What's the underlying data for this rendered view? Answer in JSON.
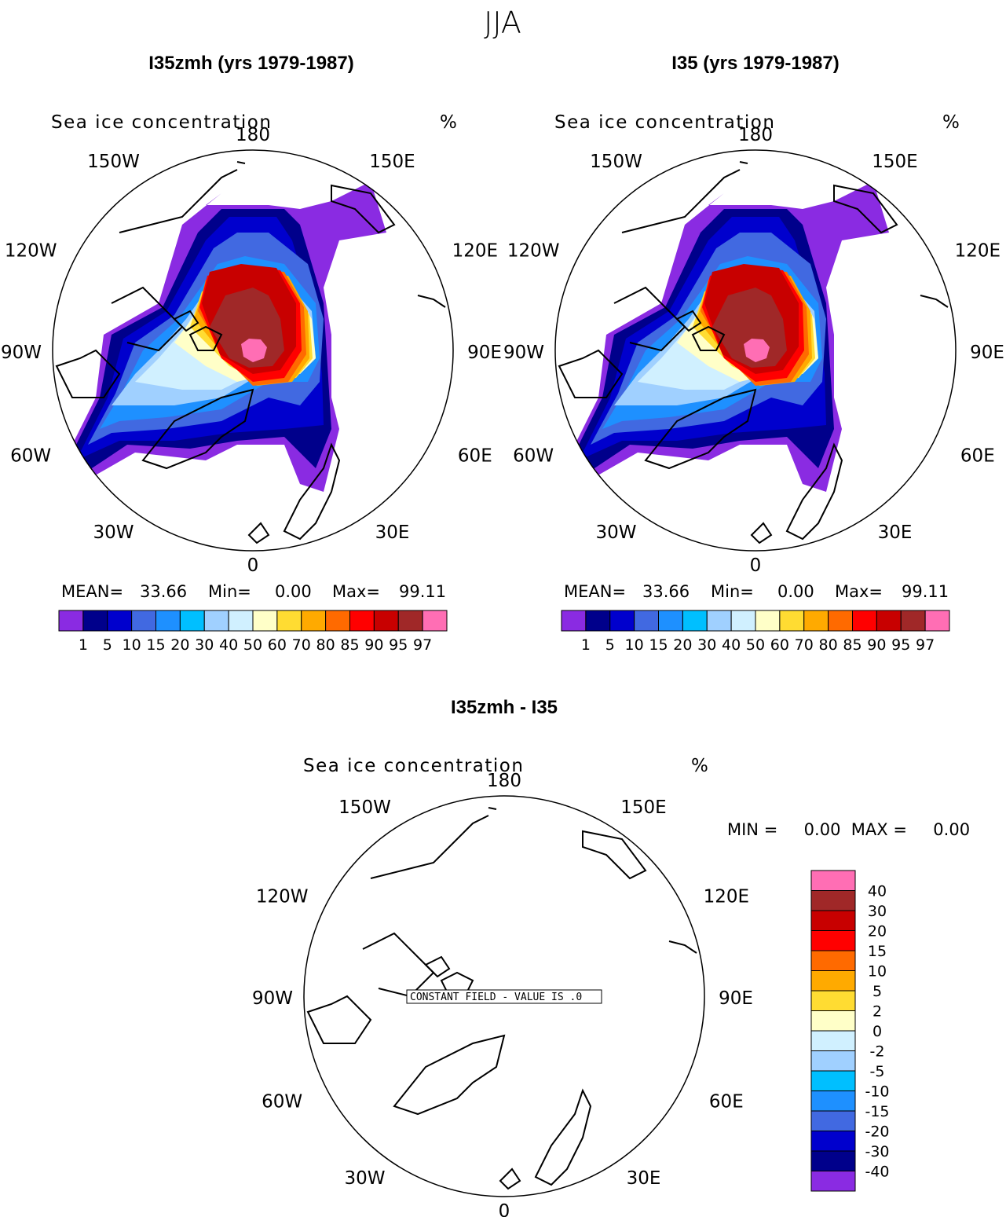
{
  "main_title": "JJA",
  "panels": [
    {
      "title": "I35zmh (yrs 1979-1987)",
      "variable": "Sea ice concentration",
      "units": "%",
      "stats": {
        "mean_label": "MEAN=",
        "mean": "33.66",
        "min_label": "Min=",
        "min": "0.00",
        "max_label": "Max=",
        "max": "99.11"
      }
    },
    {
      "title": "I35 (yrs 1979-1987)",
      "variable": "Sea ice concentration",
      "units": "%",
      "stats": {
        "mean_label": "MEAN=",
        "mean": "33.66",
        "min_label": "Min=",
        "min": "0.00",
        "max_label": "Max=",
        "max": "99.11"
      }
    },
    {
      "title": "I35zmh - I35",
      "variable": "Sea ice concentration",
      "units": "%",
      "stats_text": "MIN =     0.00  MAX =     0.00",
      "constant_field": "CONSTANT FIELD - VALUE IS .0"
    }
  ],
  "lon_labels": [
    "180",
    "150E",
    "120E",
    "90E",
    "60E",
    "30E",
    "0",
    "30W",
    "60W",
    "90W",
    "120W",
    "150W"
  ],
  "colorbar_top": {
    "colors": [
      "#8a2be2",
      "#00008b",
      "#0000cd",
      "#4169e1",
      "#1e90ff",
      "#00bfff",
      "#a0d0ff",
      "#d0f0ff",
      "#ffffc8",
      "#ffdc32",
      "#ffaa00",
      "#ff6a00",
      "#ff0000",
      "#c80000",
      "#a02828",
      "#ff6eb4"
    ],
    "ticks": [
      "1",
      "5",
      "10",
      "15",
      "20",
      "30",
      "40",
      "50",
      "60",
      "70",
      "80",
      "85",
      "90",
      "95",
      "97"
    ]
  },
  "colorbar_diff": {
    "colors": [
      "#8a2be2",
      "#00008b",
      "#0000cd",
      "#4169e1",
      "#1e90ff",
      "#00bfff",
      "#a0d0ff",
      "#d0f0ff",
      "#ffffc8",
      "#ffdc32",
      "#ffaa00",
      "#ff6a00",
      "#ff0000",
      "#c80000",
      "#a02828",
      "#ff6eb4"
    ],
    "ticks": [
      "-40",
      "-30",
      "-20",
      "-15",
      "-10",
      "-5",
      "-2",
      "0",
      "2",
      "5",
      "10",
      "15",
      "20",
      "30",
      "40"
    ]
  }
}
